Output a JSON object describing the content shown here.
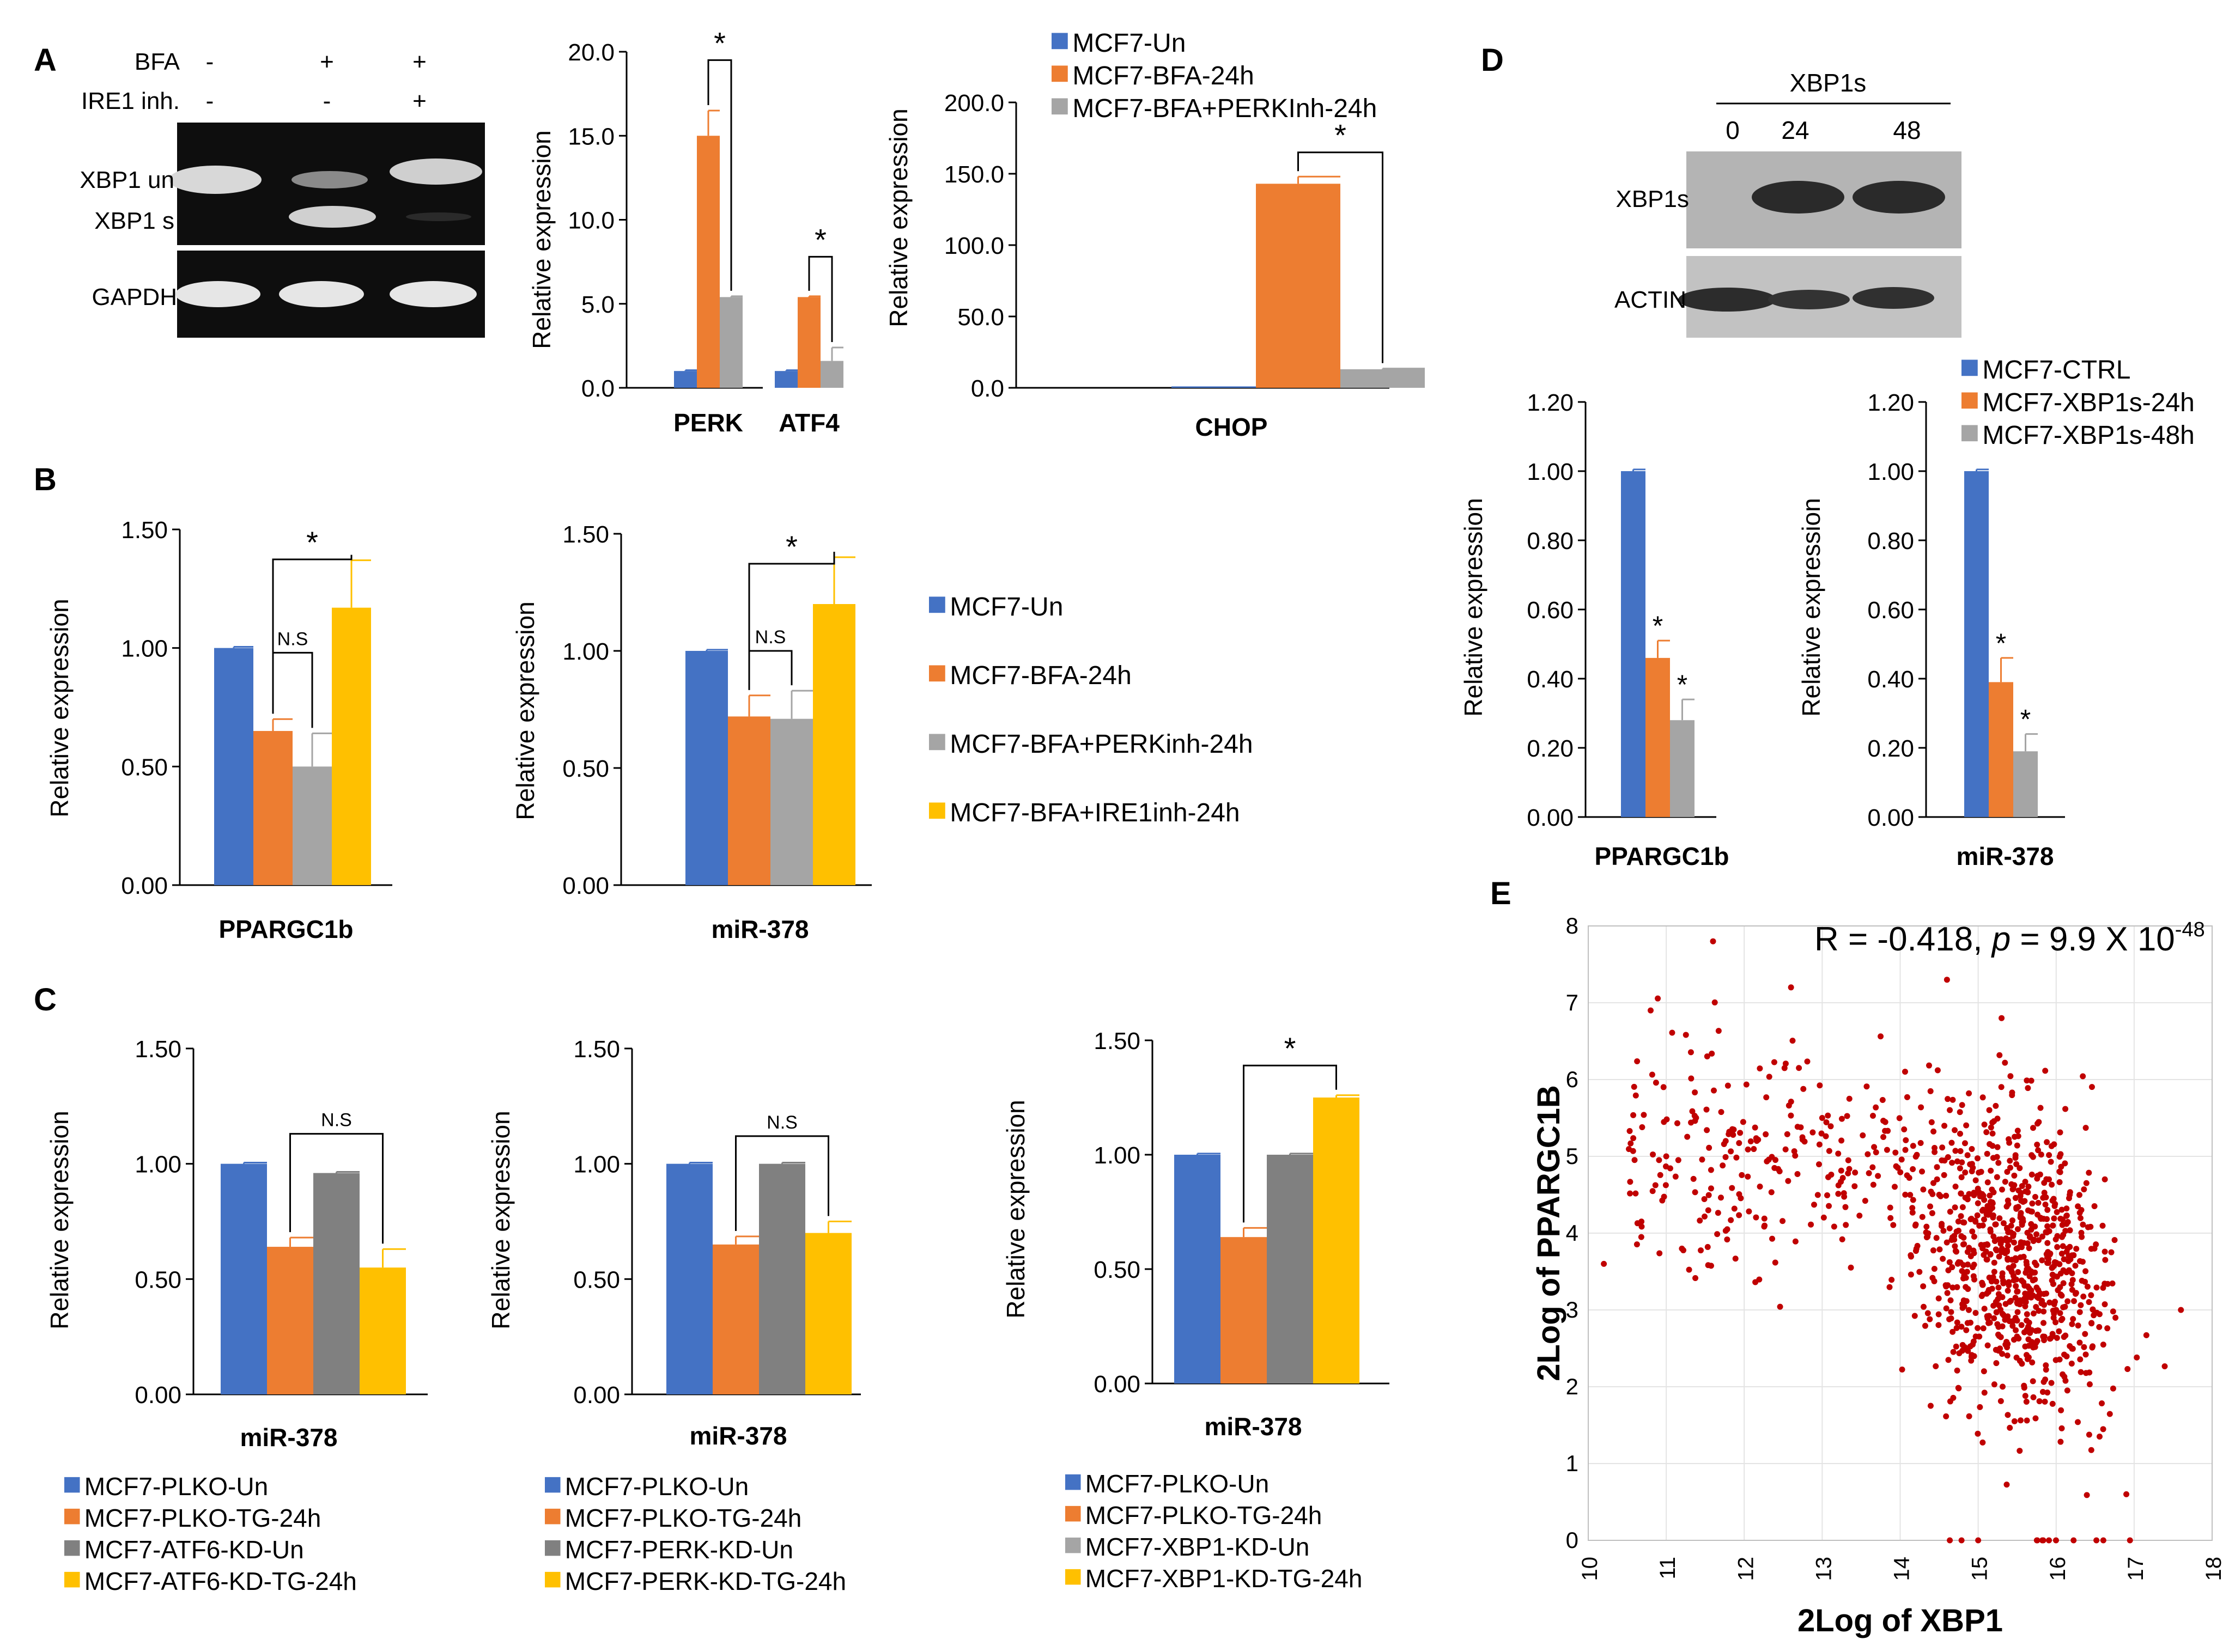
{
  "colors": {
    "blue": "#4472C4",
    "orange": "#ED7D31",
    "gray": "#A5A5A5",
    "darkgray": "#808080",
    "yellow": "#FFC000",
    "red": "#C00000"
  },
  "panels": {
    "A": "A",
    "B": "B",
    "C": "C",
    "D": "D",
    "E": "E"
  },
  "gelA": {
    "bfa_label": "BFA",
    "ire1_label": "IRE1 inh.",
    "bfa_signs": [
      "-",
      "+",
      "+"
    ],
    "ire1_signs": [
      "-",
      "-",
      "+"
    ],
    "band_labels": [
      "XBP1 un",
      "XBP1 s",
      "GAPDH"
    ]
  },
  "gelD": {
    "header": "XBP1s",
    "timepoints": [
      "0",
      "24",
      "48"
    ],
    "band_labels": [
      "XBP1s",
      "ACTIN"
    ]
  },
  "legends": {
    "A_chop": [
      "MCF7-Un",
      "MCF7-BFA-24h",
      "MCF7-BFA+PERKInh-24h"
    ],
    "B": [
      "MCF7-Un",
      "MCF7-BFA-24h",
      "MCF7-BFA+PERKinh-24h",
      "MCF7-BFA+IRE1inh-24h"
    ],
    "C1": [
      "MCF7-PLKO-Un",
      "MCF7-PLKO-TG-24h",
      "MCF7-ATF6-KD-Un",
      "MCF7-ATF6-KD-TG-24h"
    ],
    "C2": [
      "MCF7-PLKO-Un",
      "MCF7-PLKO-TG-24h",
      "MCF7-PERK-KD-Un",
      "MCF7-PERK-KD-TG-24h"
    ],
    "C3": [
      "MCF7-PLKO-Un",
      "MCF7-PLKO-TG-24h",
      "MCF7-XBP1-KD-Un",
      "MCF7-XBP1-KD-TG-24h"
    ],
    "D": [
      "MCF7-CTRL",
      "MCF7-XBP1s-24h",
      "MCF7-XBP1s-48h"
    ]
  },
  "scatter_annotation": {
    "prefix": "R = -0.418, ",
    "p": "p",
    "mid": " = 9.9 X  10",
    "exp": "-48"
  },
  "chart_data": [
    {
      "id": "A_perk_atf4",
      "type": "bar",
      "ylabel": "Relative expression",
      "ylim": [
        0,
        20
      ],
      "yticks": [
        "0.0",
        "5.0",
        "10.0",
        "15.0",
        "20.0"
      ],
      "categories": [
        "PERK",
        "ATF4"
      ],
      "series": [
        {
          "name": "MCF7-Un",
          "color": "blue",
          "values": [
            1.0,
            1.0
          ],
          "errors": [
            0.05,
            0.05
          ]
        },
        {
          "name": "MCF7-BFA-24h",
          "color": "orange",
          "values": [
            15.0,
            5.4
          ],
          "errors": [
            1.5,
            0.05
          ]
        },
        {
          "name": "MCF7-BFA+PERKinh-24h",
          "color": "gray",
          "values": [
            5.4,
            1.6
          ],
          "errors": [
            0.05,
            0.8
          ]
        }
      ],
      "sig": [
        {
          "c": 0,
          "s1": 1,
          "s2": 2,
          "label": "*"
        },
        {
          "c": 1,
          "s1": 1,
          "s2": 2,
          "label": "*"
        }
      ]
    },
    {
      "id": "A_chop",
      "type": "bar",
      "ylabel": "Relative expression",
      "ylim": [
        0,
        200
      ],
      "yticks": [
        "0.0",
        "50.0",
        "100.0",
        "150.0",
        "200.0"
      ],
      "categories": [
        "CHOP"
      ],
      "series": [
        {
          "name": "MCF7-Un",
          "color": "blue",
          "values": [
            1.0
          ],
          "errors": [
            0
          ]
        },
        {
          "name": "MCF7-BFA-24h",
          "color": "orange",
          "values": [
            143.0
          ],
          "errors": [
            5
          ]
        },
        {
          "name": "MCF7-BFA+PERKInh-24h",
          "color": "gray",
          "values": [
            13.0
          ],
          "errors": [
            0.5
          ]
        }
      ],
      "sig": [
        {
          "c": 0,
          "s1": 1,
          "s2": 2,
          "label": "*"
        }
      ]
    },
    {
      "id": "B_ppargc1b",
      "type": "bar",
      "ylabel": "Relative expression",
      "ylim": [
        0,
        1.5
      ],
      "yticks": [
        "0.00",
        "0.50",
        "1.00",
        "1.50"
      ],
      "categories": [
        "PPARGC1b"
      ],
      "series": [
        {
          "name": "MCF7-Un",
          "color": "blue",
          "values": [
            1.0
          ],
          "errors": [
            0.005
          ]
        },
        {
          "name": "MCF7-BFA-24h",
          "color": "orange",
          "values": [
            0.65
          ],
          "errors": [
            0.05
          ]
        },
        {
          "name": "MCF7-BFA+PERKinh-24h",
          "color": "gray",
          "values": [
            0.5
          ],
          "errors": [
            0.14
          ]
        },
        {
          "name": "MCF7-BFA+IRE1inh-24h",
          "color": "yellow",
          "values": [
            1.17
          ],
          "errors": [
            0.2
          ]
        }
      ],
      "sig": [
        {
          "c": 0,
          "s1": 1,
          "s2": 3,
          "label": "*"
        },
        {
          "c": 0,
          "s1": 1,
          "s2": 2,
          "label": "N.S"
        }
      ]
    },
    {
      "id": "B_mir378",
      "type": "bar",
      "ylabel": "Relative expression",
      "ylim": [
        0,
        1.5
      ],
      "yticks": [
        "0.00",
        "0.50",
        "1.00",
        "1.50"
      ],
      "categories": [
        "miR-378"
      ],
      "series": [
        {
          "name": "MCF7-Un",
          "color": "blue",
          "values": [
            1.0
          ],
          "errors": [
            0.005
          ]
        },
        {
          "name": "MCF7-BFA-24h",
          "color": "orange",
          "values": [
            0.72
          ],
          "errors": [
            0.09
          ]
        },
        {
          "name": "MCF7-BFA+PERKinh-24h",
          "color": "gray",
          "values": [
            0.71
          ],
          "errors": [
            0.12
          ]
        },
        {
          "name": "MCF7-BFA+IRE1inh-24h",
          "color": "yellow",
          "values": [
            1.2
          ],
          "errors": [
            0.2
          ]
        }
      ],
      "sig": [
        {
          "c": 0,
          "s1": 1,
          "s2": 3,
          "label": "*"
        },
        {
          "c": 0,
          "s1": 1,
          "s2": 2,
          "label": "N.S"
        }
      ]
    },
    {
      "id": "C_atf6",
      "type": "bar",
      "ylabel": "Relative expression",
      "ylim": [
        0,
        1.5
      ],
      "yticks": [
        "0.00",
        "0.50",
        "1.00",
        "1.50"
      ],
      "categories": [
        "miR-378"
      ],
      "series": [
        {
          "name": "MCF7-PLKO-Un",
          "color": "blue",
          "values": [
            1.0
          ],
          "errors": [
            0.005
          ]
        },
        {
          "name": "MCF7-PLKO-TG-24h",
          "color": "orange",
          "values": [
            0.64
          ],
          "errors": [
            0.04
          ]
        },
        {
          "name": "MCF7-ATF6-KD-Un",
          "color": "darkgray",
          "values": [
            0.96
          ],
          "errors": [
            0.005
          ]
        },
        {
          "name": "MCF7-ATF6-KD-TG-24h",
          "color": "yellow",
          "values": [
            0.55
          ],
          "errors": [
            0.08
          ]
        }
      ],
      "sig": [
        {
          "c": 0,
          "s1": 1,
          "s2": 3,
          "label": "N.S"
        }
      ]
    },
    {
      "id": "C_perk",
      "type": "bar",
      "ylabel": "Relative expression",
      "ylim": [
        0,
        1.5
      ],
      "yticks": [
        "0.00",
        "0.50",
        "1.00",
        "1.50"
      ],
      "categories": [
        "miR-378"
      ],
      "series": [
        {
          "name": "MCF7-PLKO-Un",
          "color": "blue",
          "values": [
            1.0
          ],
          "errors": [
            0.005
          ]
        },
        {
          "name": "MCF7-PLKO-TG-24h",
          "color": "orange",
          "values": [
            0.65
          ],
          "errors": [
            0.035
          ]
        },
        {
          "name": "MCF7-PERK-KD-Un",
          "color": "darkgray",
          "values": [
            1.0
          ],
          "errors": [
            0.005
          ]
        },
        {
          "name": "MCF7-PERK-KD-TG-24h",
          "color": "yellow",
          "values": [
            0.7
          ],
          "errors": [
            0.05
          ]
        }
      ],
      "sig": [
        {
          "c": 0,
          "s1": 1,
          "s2": 3,
          "label": "N.S"
        }
      ]
    },
    {
      "id": "C_xbp1",
      "type": "bar",
      "ylabel": "Relative expression",
      "ylim": [
        0,
        1.5
      ],
      "yticks": [
        "0.00",
        "0.50",
        "1.00",
        "1.50"
      ],
      "categories": [
        "miR-378"
      ],
      "series": [
        {
          "name": "MCF7-PLKO-Un",
          "color": "blue",
          "values": [
            1.0
          ],
          "errors": [
            0.005
          ]
        },
        {
          "name": "MCF7-PLKO-TG-24h",
          "color": "orange",
          "values": [
            0.64
          ],
          "errors": [
            0.04
          ]
        },
        {
          "name": "MCF7-XBP1-KD-Un",
          "color": "darkgray",
          "values": [
            1.0
          ],
          "errors": [
            0.005
          ]
        },
        {
          "name": "MCF7-XBP1-KD-TG-24h",
          "color": "yellow",
          "values": [
            1.25
          ],
          "errors": [
            0.01
          ]
        }
      ],
      "sig": [
        {
          "c": 0,
          "s1": 1,
          "s2": 3,
          "label": "*"
        }
      ]
    },
    {
      "id": "D_ppargc1b",
      "type": "bar",
      "ylabel": "Relative expression",
      "ylim": [
        0,
        1.2
      ],
      "yticks": [
        "0.00",
        "0.20",
        "0.40",
        "0.60",
        "0.80",
        "1.00",
        "1.20"
      ],
      "categories": [
        "PPARGC1b"
      ],
      "series": [
        {
          "name": "MCF7-CTRL",
          "color": "blue",
          "values": [
            1.0
          ],
          "errors": [
            0.005
          ]
        },
        {
          "name": "MCF7-XBP1s-24h",
          "color": "orange",
          "values": [
            0.46
          ],
          "errors": [
            0.05
          ]
        },
        {
          "name": "MCF7-XBP1s-48h",
          "color": "gray",
          "values": [
            0.28
          ],
          "errors": [
            0.06
          ]
        }
      ],
      "bar_stars": [
        1,
        2
      ]
    },
    {
      "id": "D_mir378",
      "type": "bar",
      "ylabel": "Relative expression",
      "ylim": [
        0,
        1.2
      ],
      "yticks": [
        "0.00",
        "0.20",
        "0.40",
        "0.60",
        "0.80",
        "1.00",
        "1.20"
      ],
      "categories": [
        "miR-378"
      ],
      "series": [
        {
          "name": "MCF7-CTRL",
          "color": "blue",
          "values": [
            1.0
          ],
          "errors": [
            0.005
          ]
        },
        {
          "name": "MCF7-XBP1s-24h",
          "color": "orange",
          "values": [
            0.39
          ],
          "errors": [
            0.07
          ]
        },
        {
          "name": "MCF7-XBP1s-48h",
          "color": "gray",
          "values": [
            0.19
          ],
          "errors": [
            0.05
          ]
        }
      ],
      "bar_stars": [
        1,
        2
      ]
    },
    {
      "id": "E_scatter",
      "type": "scatter",
      "xlabel": "2Log of XBP1",
      "ylabel": "2Log of PPARGC1B",
      "xlim": [
        10,
        18
      ],
      "ylim": [
        0,
        8
      ],
      "xticks": [
        "10",
        "11",
        "12",
        "13",
        "14",
        "15",
        "16",
        "17",
        "18"
      ],
      "yticks": [
        "0",
        "1",
        "2",
        "3",
        "4",
        "5",
        "6",
        "7",
        "8"
      ],
      "R": -0.418,
      "n_points": 1100,
      "point_color": "red",
      "sample_points": [
        [
          11.6,
          7.8
        ],
        [
          10.8,
          6.9
        ],
        [
          12.6,
          7.2
        ],
        [
          14.6,
          7.3
        ],
        [
          15.3,
          6.8
        ],
        [
          10.2,
          3.6
        ],
        [
          17.6,
          3.0
        ],
        [
          16.9,
          0.6
        ],
        [
          15.0,
          0.0
        ],
        [
          11.0,
          5.0
        ],
        [
          13.0,
          5.5
        ],
        [
          15.5,
          3.8
        ],
        [
          16.0,
          3.0
        ],
        [
          14.5,
          4.5
        ],
        [
          15.8,
          4.2
        ]
      ]
    }
  ]
}
